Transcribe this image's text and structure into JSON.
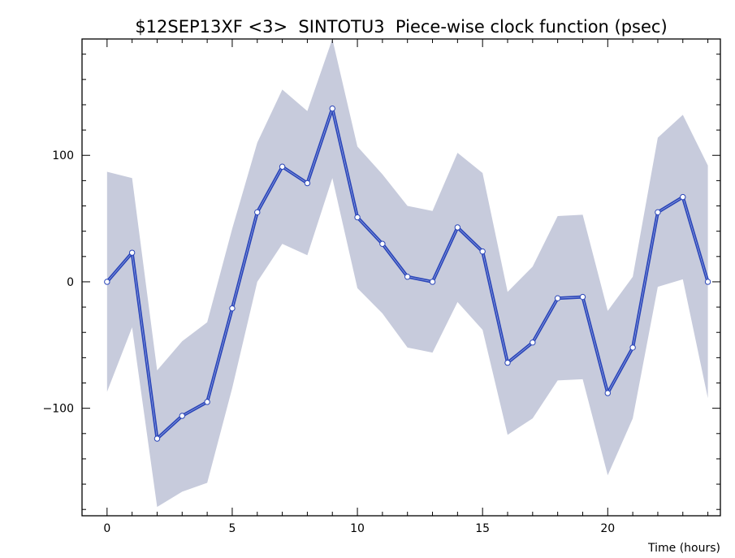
{
  "chart_data": {
    "type": "line",
    "title": "$12SEP13XF <3>  SINTOTU3  Piece-wise clock function (psec)",
    "xlabel": "Time (hours)",
    "ylabel": "",
    "xlim": [
      -1,
      24.5
    ],
    "ylim": [
      -185,
      192
    ],
    "x_ticks": [
      0,
      5,
      10,
      15,
      20
    ],
    "y_ticks": [
      -100,
      0,
      100
    ],
    "grid": false,
    "colors": {
      "line": "#2a45b8",
      "band": "#c7cbdc",
      "marker_fill": "#ffffff"
    },
    "x": [
      0,
      1,
      2,
      3,
      4,
      5,
      6,
      7,
      8,
      9,
      10,
      11,
      12,
      13,
      14,
      15,
      16,
      17,
      18,
      19,
      20,
      21,
      22,
      23,
      24
    ],
    "series": [
      {
        "values": [
          0,
          23,
          -124,
          -106,
          -95,
          -21,
          55,
          91,
          78,
          137,
          51,
          30,
          4,
          0,
          43,
          24,
          -64,
          -48,
          -13,
          -12,
          -88,
          -52,
          55,
          67,
          0
        ],
        "upper": [
          87,
          82,
          -70,
          -47,
          -32,
          42,
          110,
          152,
          135,
          192,
          107,
          85,
          60,
          56,
          102,
          86,
          -8,
          12,
          52,
          53,
          -23,
          4,
          114,
          132,
          92
        ],
        "lower": [
          -87,
          -36,
          -178,
          -166,
          -159,
          -84,
          0,
          30,
          21,
          82,
          -5,
          -25,
          -52,
          -56,
          -16,
          -38,
          -121,
          -108,
          -78,
          -77,
          -153,
          -108,
          -4,
          2,
          -92
        ]
      }
    ]
  }
}
